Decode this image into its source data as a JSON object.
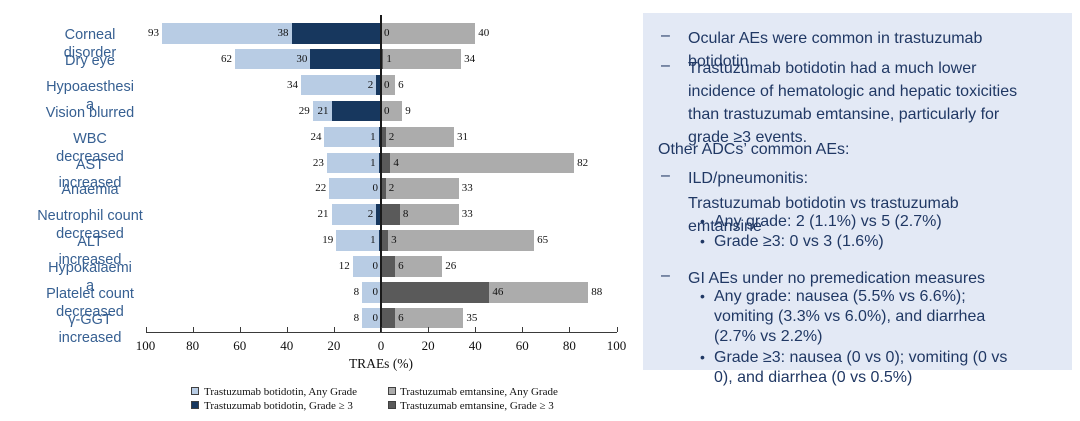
{
  "chart_data": {
    "type": "bar",
    "orientation": "horizontal-diverging",
    "title": "",
    "xlabel": "TRAEs (%)",
    "xlim": [
      -100,
      100
    ],
    "x_tick_step": 20,
    "x_tick_labels": [
      "100",
      "80",
      "60",
      "40",
      "20",
      "0",
      "20",
      "40",
      "60",
      "80",
      "100"
    ],
    "grid": false,
    "legend_position": "bottom",
    "categories": [
      "Corneal disorder",
      "Dry eye",
      "Hypoaesthesia",
      "Vision blurred",
      "WBC decreased",
      "AST increased",
      "Anaemia",
      "Neutrophil count decreased",
      "ALT increased",
      "Hypokalaemia",
      "Platelet count decreased",
      "γ-GGT increased"
    ],
    "category_lines": [
      [
        "Corneal",
        "disorder"
      ],
      [
        "Dry eye"
      ],
      [
        "Hypoaesthesi",
        "a"
      ],
      [
        "Vision blurred"
      ],
      [
        "WBC",
        "decreased"
      ],
      [
        "AST",
        "increased"
      ],
      [
        "Anaemia"
      ],
      [
        "Neutrophil count",
        "decreased"
      ],
      [
        "ALT",
        "increased"
      ],
      [
        "Hypokalaemi",
        "a"
      ],
      [
        "Platelet count",
        "decreased"
      ],
      [
        "γ-GGT",
        "increased"
      ]
    ],
    "series": [
      {
        "name": "Trastuzumab botidotin, Any Grade",
        "side": "left",
        "color": "#B8CCE4",
        "values": [
          93,
          62,
          34,
          29,
          24,
          23,
          22,
          21,
          19,
          12,
          8,
          8
        ]
      },
      {
        "name": "Trastuzumab botidotin, Grade ≥ 3",
        "side": "left",
        "color": "#17375E",
        "values": [
          38,
          30,
          2,
          21,
          1,
          1,
          0,
          2,
          1,
          0,
          0,
          0
        ]
      },
      {
        "name": "Trastuzumab emtansine, Any Grade",
        "side": "right",
        "color": "#ACACAC",
        "values": [
          40,
          34,
          6,
          9,
          31,
          82,
          33,
          33,
          65,
          26,
          88,
          35
        ]
      },
      {
        "name": "Trastuzumab emtansine, Grade ≥ 3",
        "side": "right",
        "color": "#5A5A5A",
        "values": [
          0,
          1,
          0,
          0,
          2,
          4,
          2,
          8,
          3,
          6,
          46,
          6
        ]
      }
    ],
    "legend": [
      {
        "label": "Trastuzumab botidotin, Any Grade",
        "color": "#B8CCE4"
      },
      {
        "label": "Trastuzumab emtansine, Any Grade",
        "color": "#ACACAC"
      },
      {
        "label": "Trastuzumab botidotin, Grade ≥ 3",
        "color": "#17375E"
      },
      {
        "label": "Trastuzumab emtansine, Grade ≥ 3",
        "color": "#5A5A5A"
      }
    ]
  },
  "panel": {
    "background": "#E3E9F5",
    "text_color": "#203864",
    "markers": {
      "dash": "–",
      "dot": "•"
    },
    "items": [
      {
        "type": "dash",
        "text": "Ocular AEs were common in trastuzumab botidotin"
      },
      {
        "type": "dash",
        "text": "Trastuzumab botidotin had a much lower incidence of hematologic and hepatic toxicities than trastuzumab emtansine, particularly for grade ≥3 events."
      },
      {
        "type": "plain",
        "text": "Other ADCs’ common AEs:"
      },
      {
        "type": "dash",
        "text": "ILD/pneumonitis:"
      },
      {
        "type": "cont",
        "text": "Trastuzumab botidotin vs trastuzumab emtansine"
      },
      {
        "type": "dot",
        "text": "Any grade: 2 (1.1%) vs 5 (2.7%)"
      },
      {
        "type": "dot",
        "text": "Grade ≥3: 0 vs 3 (1.6%)"
      },
      {
        "type": "dash",
        "text": "GI AEs under no premedication measures"
      },
      {
        "type": "dot",
        "text": "Any grade: nausea (5.5% vs 6.6%); vomiting (3.3% vs 6.0%), and diarrhea (2.7% vs 2.2%)"
      },
      {
        "type": "dot",
        "text": "Grade ≥3: nausea (0 vs 0); vomiting (0 vs 0), and diarrhea (0 vs 0.5%)"
      }
    ]
  }
}
